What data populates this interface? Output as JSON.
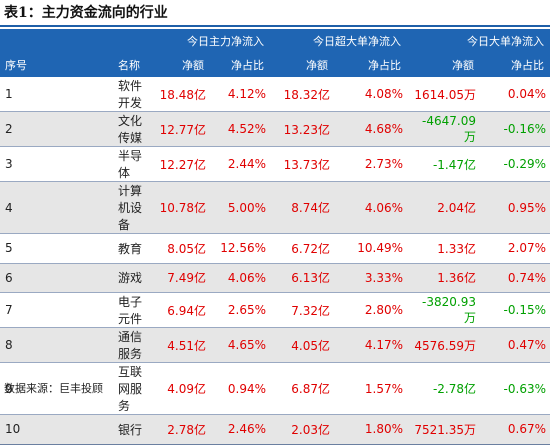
{
  "title": "表1：主力资金流向的行业",
  "header": {
    "group1": "今日主力净流入",
    "group2": "今日超大单净流入",
    "group3": "今日大单净流入",
    "col_index": "序号",
    "col_name": "名称",
    "col_net": "净额",
    "col_ratio": "净占比"
  },
  "rows": [
    {
      "idx": "1",
      "name": "软件开发",
      "m_net": "18.48亿",
      "m_ratio": "4.12%",
      "s_net": "18.32亿",
      "s_ratio": "4.08%",
      "l_net": "1614.05万",
      "l_ratio": "0.04%",
      "l_sign": "pos"
    },
    {
      "idx": "2",
      "name": "文化传媒",
      "m_net": "12.77亿",
      "m_ratio": "4.52%",
      "s_net": "13.23亿",
      "s_ratio": "4.68%",
      "l_net": "-4647.09万",
      "l_ratio": "-0.16%",
      "l_sign": "neg"
    },
    {
      "idx": "3",
      "name": "半导体",
      "m_net": "12.27亿",
      "m_ratio": "2.44%",
      "s_net": "13.73亿",
      "s_ratio": "2.73%",
      "l_net": "-1.47亿",
      "l_ratio": "-0.29%",
      "l_sign": "neg"
    },
    {
      "idx": "4",
      "name": "计算机设备",
      "m_net": "10.78亿",
      "m_ratio": "5.00%",
      "s_net": "8.74亿",
      "s_ratio": "4.06%",
      "l_net": "2.04亿",
      "l_ratio": "0.95%",
      "l_sign": "pos"
    },
    {
      "idx": "5",
      "name": "教育",
      "m_net": "8.05亿",
      "m_ratio": "12.56%",
      "s_net": "6.72亿",
      "s_ratio": "10.49%",
      "l_net": "1.33亿",
      "l_ratio": "2.07%",
      "l_sign": "pos"
    },
    {
      "idx": "6",
      "name": "游戏",
      "m_net": "7.49亿",
      "m_ratio": "4.06%",
      "s_net": "6.13亿",
      "s_ratio": "3.33%",
      "l_net": "1.36亿",
      "l_ratio": "0.74%",
      "l_sign": "pos"
    },
    {
      "idx": "7",
      "name": "电子元件",
      "m_net": "6.94亿",
      "m_ratio": "2.65%",
      "s_net": "7.32亿",
      "s_ratio": "2.80%",
      "l_net": "-3820.93万",
      "l_ratio": "-0.15%",
      "l_sign": "neg"
    },
    {
      "idx": "8",
      "name": "通信服务",
      "m_net": "4.51亿",
      "m_ratio": "4.65%",
      "s_net": "4.05亿",
      "s_ratio": "4.17%",
      "l_net": "4576.59万",
      "l_ratio": "0.47%",
      "l_sign": "pos"
    },
    {
      "idx": "9",
      "name": "互联网服务",
      "m_net": "4.09亿",
      "m_ratio": "0.94%",
      "s_net": "6.87亿",
      "s_ratio": "1.57%",
      "l_net": "-2.78亿",
      "l_ratio": "-0.63%",
      "l_sign": "neg"
    },
    {
      "idx": "10",
      "name": "银行",
      "m_net": "2.78亿",
      "m_ratio": "2.46%",
      "s_net": "2.03亿",
      "s_ratio": "1.80%",
      "l_net": "7521.35万",
      "l_ratio": "0.67%",
      "l_sign": "pos"
    }
  ],
  "source": "数据来源：巨丰投顾",
  "colors": {
    "header_bg": "#1f65b3",
    "positive": "#e00000",
    "negative": "#00a000",
    "stripe": "#e6e6e6"
  }
}
